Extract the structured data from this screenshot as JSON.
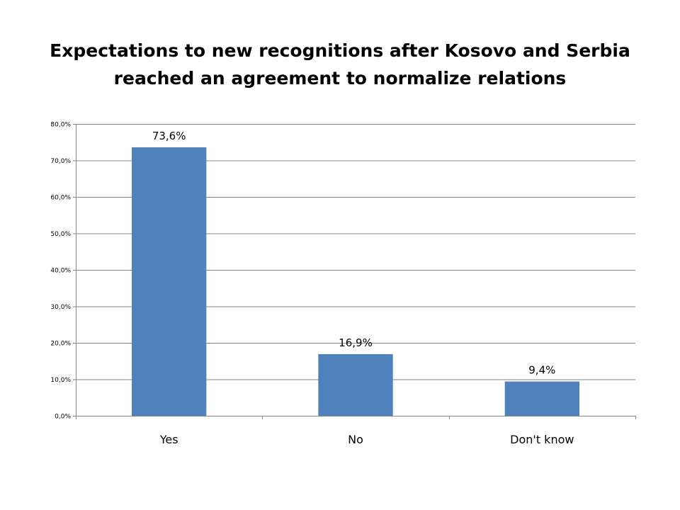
{
  "chart_data": {
    "type": "bar",
    "title_lines": [
      "Expectations to new recognitions after Kosovo and Serbia",
      "reached an agreement to normalize relations"
    ],
    "categories": [
      "Yes",
      "No",
      "Don't know"
    ],
    "values": [
      73.6,
      16.9,
      9.4
    ],
    "data_labels": [
      "73,6%",
      "16,9%",
      "9,4%"
    ],
    "xlabel": "",
    "ylabel": "",
    "ylim": [
      0,
      80
    ],
    "yticks": [
      0,
      10,
      20,
      30,
      40,
      50,
      60,
      70,
      80
    ],
    "ytick_labels": [
      "0,0%",
      "10,0%",
      "20,0%",
      "30,0%",
      "40,0%",
      "50,0%",
      "60,0%",
      "70,0%",
      "80,0%"
    ],
    "grid": true,
    "legend": "none",
    "bar_color": "#4F81BD",
    "grid_color": "#868686"
  }
}
